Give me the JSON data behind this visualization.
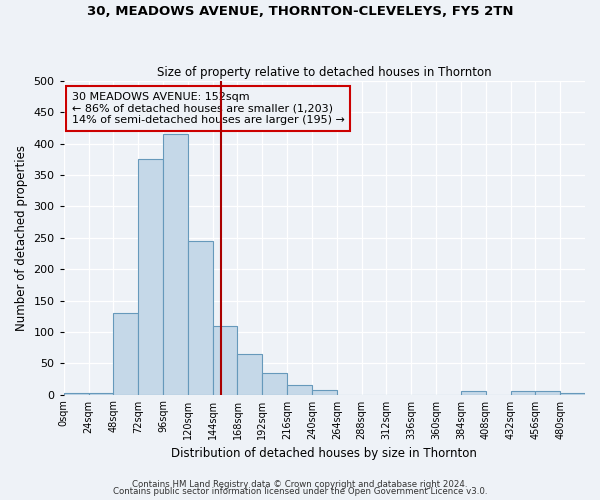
{
  "title1": "30, MEADOWS AVENUE, THORNTON-CLEVELEYS, FY5 2TN",
  "title2": "Size of property relative to detached houses in Thornton",
  "xlabel": "Distribution of detached houses by size in Thornton",
  "ylabel": "Number of detached properties",
  "bin_edges": [
    0,
    24,
    48,
    72,
    96,
    120,
    144,
    168,
    192,
    216,
    240,
    264,
    288,
    312,
    336,
    360,
    384,
    408,
    432,
    456,
    480,
    504
  ],
  "bar_heights": [
    3,
    3,
    130,
    375,
    415,
    245,
    110,
    65,
    35,
    15,
    8,
    0,
    0,
    0,
    0,
    0,
    6,
    0,
    5,
    5,
    3
  ],
  "bar_color": "#c5d8e8",
  "bar_edge_color": "#6699bb",
  "property_size": 152,
  "vline_color": "#aa0000",
  "annotation_title": "30 MEADOWS AVENUE: 152sqm",
  "annotation_line1": "← 86% of detached houses are smaller (1,203)",
  "annotation_line2": "14% of semi-detached houses are larger (195) →",
  "annotation_box_edge": "#cc0000",
  "ylim": [
    0,
    500
  ],
  "tick_labels": [
    "0sqm",
    "24sqm",
    "48sqm",
    "72sqm",
    "96sqm",
    "120sqm",
    "144sqm",
    "168sqm",
    "192sqm",
    "216sqm",
    "240sqm",
    "264sqm",
    "288sqm",
    "312sqm",
    "336sqm",
    "360sqm",
    "384sqm",
    "408sqm",
    "432sqm",
    "456sqm",
    "480sqm"
  ],
  "footer1": "Contains HM Land Registry data © Crown copyright and database right 2024.",
  "footer2": "Contains public sector information licensed under the Open Government Licence v3.0.",
  "bg_color": "#eef2f7"
}
